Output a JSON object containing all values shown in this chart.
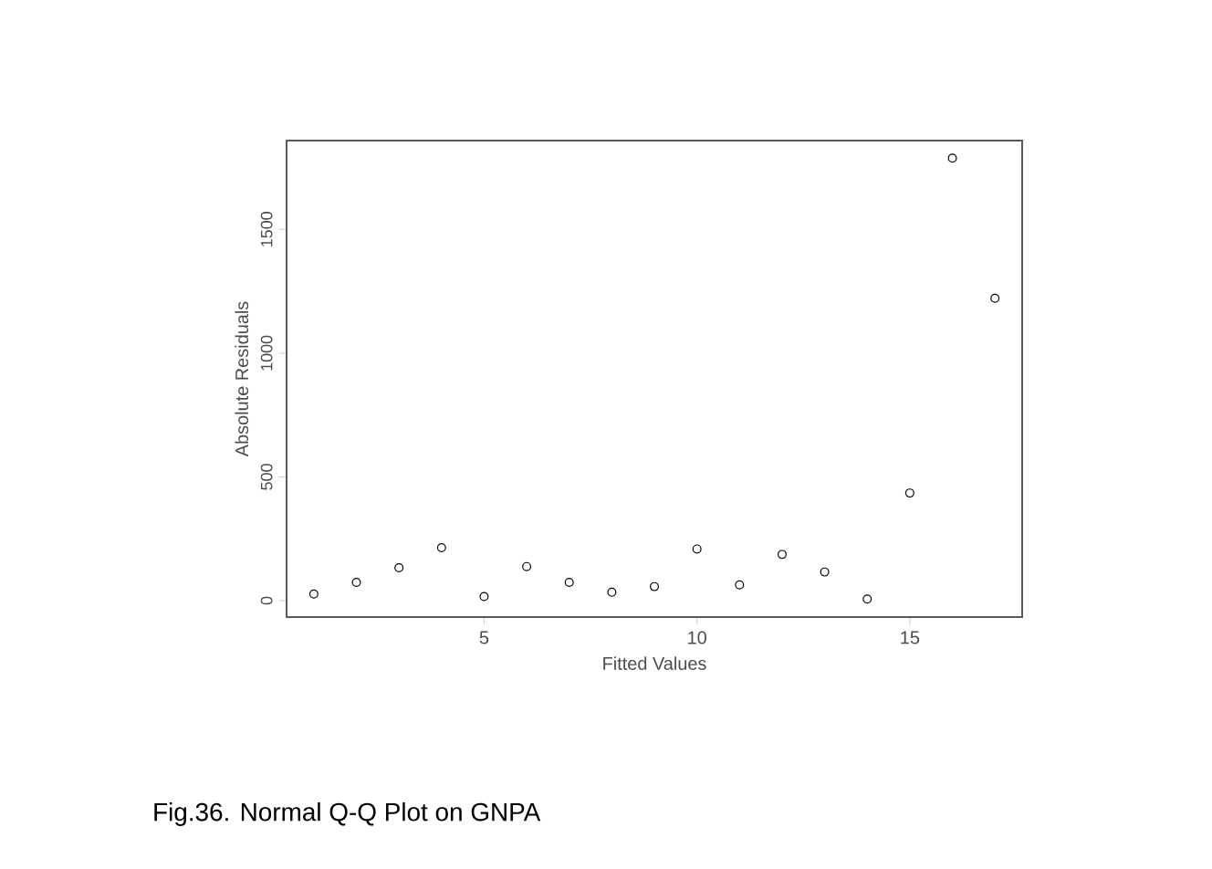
{
  "chart_data": {
    "type": "scatter",
    "xlabel": "Fitted Values",
    "ylabel": "Absolute Residuals",
    "x": [
      1,
      2,
      3,
      4,
      5,
      6,
      7,
      8,
      9,
      10,
      11,
      12,
      13,
      14,
      15,
      16,
      17
    ],
    "values": [
      27,
      74,
      133,
      214,
      17,
      138,
      74,
      34,
      57,
      209,
      64,
      187,
      116,
      7,
      435,
      1788,
      1222
    ],
    "color": "#000000",
    "marker": "circle",
    "xlim": [
      0.36,
      17.64
    ],
    "ylim": [
      -66,
      1859
    ],
    "xticks": [
      5,
      10,
      15
    ],
    "yticks": [
      0,
      500,
      1000,
      1500
    ],
    "annotations": [
      "Fig.36. Normal Q-Q Plot on GNPA"
    ]
  }
}
